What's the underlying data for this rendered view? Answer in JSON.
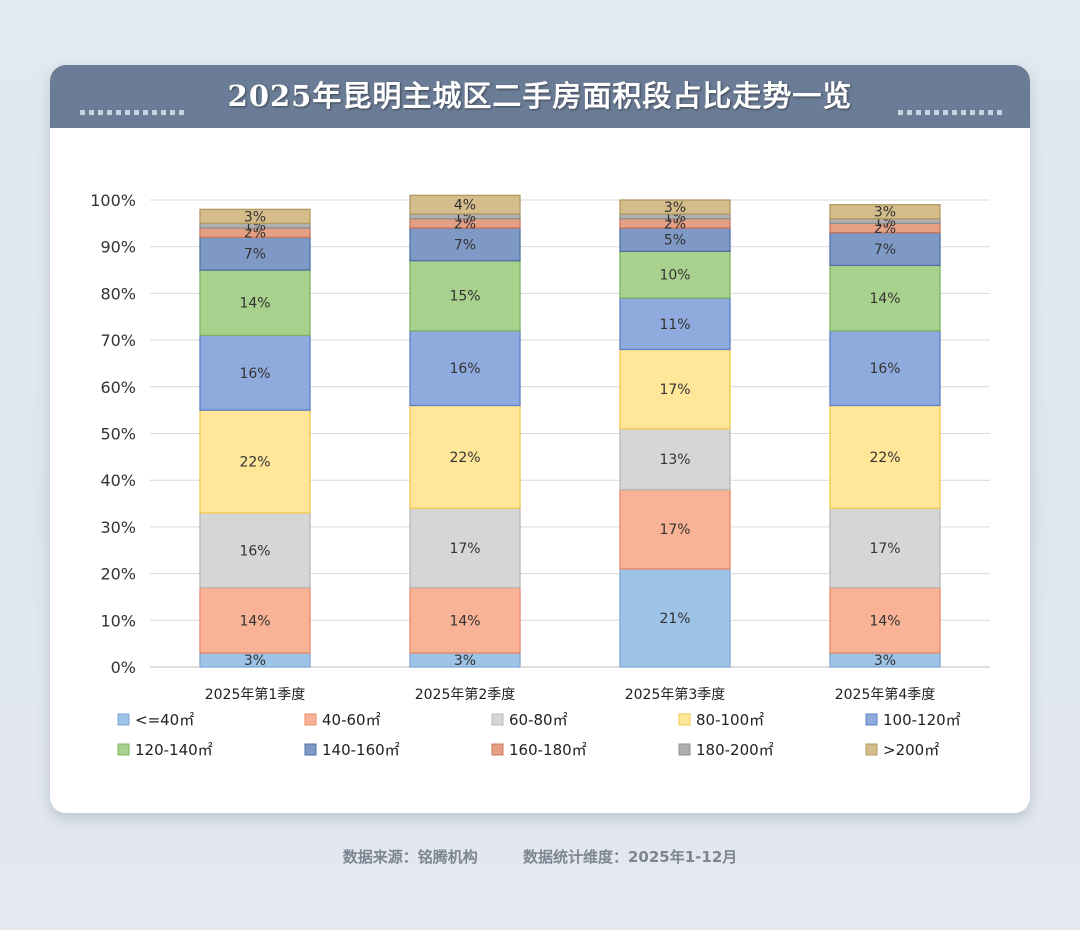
{
  "title": "2025年昆明主城区二手房面积段占比走势一览",
  "footer": {
    "source": "数据来源：铭腾机构",
    "period": "数据统计维度：2025年1-12月"
  },
  "chart_data": {
    "type": "bar",
    "stacked": true,
    "ylim": [
      0,
      100
    ],
    "yticks": [
      "0%",
      "10%",
      "20%",
      "30%",
      "40%",
      "50%",
      "60%",
      "70%",
      "80%",
      "90%",
      "100%"
    ],
    "categories": [
      "2025年第1季度",
      "2025年第2季度",
      "2025年第3季度",
      "2025年第4季度"
    ],
    "series": [
      {
        "name": "<=40㎡",
        "color": "#9dc3e6",
        "border": "#7fa8d4",
        "values": [
          3,
          3,
          21,
          3
        ],
        "labels": [
          "3%",
          "3%",
          "21%",
          "3%"
        ]
      },
      {
        "name": "40-60㎡",
        "color": "#f8b396",
        "border": "#e8896a",
        "values": [
          14,
          14,
          17,
          14
        ],
        "labels": [
          "14%",
          "14%",
          "17%",
          "14%"
        ]
      },
      {
        "name": "60-80㎡",
        "color": "#d6d6d6",
        "border": "#b8b8b8",
        "values": [
          16,
          17,
          13,
          17
        ],
        "labels": [
          "16%",
          "17%",
          "13%",
          "17%"
        ]
      },
      {
        "name": "80-100㎡",
        "color": "#ffe699",
        "border": "#f2c94c",
        "values": [
          22,
          22,
          17,
          22
        ],
        "labels": [
          "22%",
          "22%",
          "17%",
          "22%"
        ]
      },
      {
        "name": "100-120㎡",
        "color": "#8faadc",
        "border": "#5b7fc7",
        "values": [
          16,
          16,
          11,
          16
        ],
        "labels": [
          "16%",
          "16%",
          "11%",
          "16%"
        ]
      },
      {
        "name": "120-140㎡",
        "color": "#a9d18e",
        "border": "#7fb35d",
        "values": [
          14,
          15,
          10,
          14
        ],
        "labels": [
          "14%",
          "15%",
          "10%",
          "14%"
        ]
      },
      {
        "name": "140-160㎡",
        "color": "#7f99c6",
        "border": "#4f6fa6",
        "values": [
          7,
          7,
          5,
          7
        ],
        "labels": [
          "7%",
          "7%",
          "5%",
          "7%"
        ]
      },
      {
        "name": "160-180㎡",
        "color": "#e59f84",
        "border": "#c87558",
        "values": [
          2,
          2,
          2,
          2
        ],
        "labels": [
          "2%",
          "2%",
          "2%",
          "2%"
        ]
      },
      {
        "name": "180-200㎡",
        "color": "#b0b0b0",
        "border": "#8f8f8f",
        "values": [
          1,
          1,
          1,
          1
        ],
        "labels": [
          "1%",
          "1%",
          "1%",
          "1%"
        ]
      },
      {
        "name": ">200㎡",
        "color": "#d4bd8a",
        "border": "#b39a62",
        "values": [
          3,
          4,
          3,
          3
        ],
        "labels": [
          "3%",
          "4%",
          "3%",
          "3%"
        ]
      }
    ]
  }
}
